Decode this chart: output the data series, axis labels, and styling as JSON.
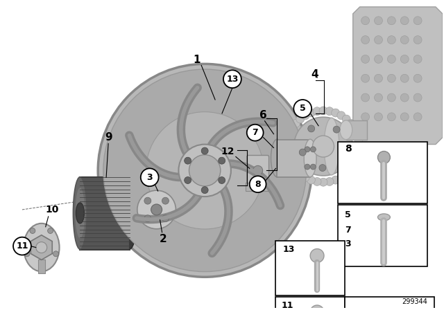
{
  "bg_color": "#ffffff",
  "part_number": "299344",
  "gray_light": "#c0c0c0",
  "gray_mid": "#a0a0a0",
  "gray_dark": "#707070",
  "gray_darkest": "#454545",
  "gray_pulley": "#505050",
  "gray_engine": "#b0b0b0"
}
